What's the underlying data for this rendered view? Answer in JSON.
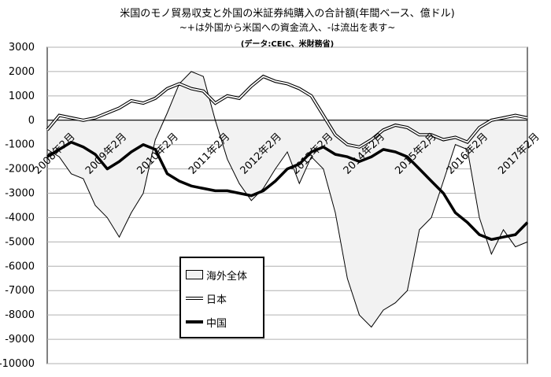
{
  "chart_data": {
    "type": "line",
    "title": "米国のモノ貿易収支と外国の米証券純購入の合計額(年間ベース、億ドル)",
    "subtitle": "~+は外国から米国への資金流入、-は流出を表す~",
    "source": "(データ:CEIC、米財務省)",
    "ylim": [
      -10000,
      3000
    ],
    "y_ticks": [
      3000,
      2000,
      1000,
      0,
      -1000,
      -2000,
      -3000,
      -4000,
      -5000,
      -6000,
      -7000,
      -8000,
      -9000,
      -10000
    ],
    "x_ticks": [
      "2008年2月",
      "2009年2月",
      "2010年2月",
      "2011年2月",
      "2012年2月",
      "2013年2月",
      "2014年2月",
      "2015年2月",
      "2016年2月",
      "2017年2月"
    ],
    "grid": true,
    "legend": "inside-bottom-left",
    "x": [
      0,
      0.25,
      0.5,
      0.75,
      1,
      1.25,
      1.5,
      1.75,
      2,
      2.25,
      2.5,
      2.75,
      3,
      3.25,
      3.5,
      3.75,
      4,
      4.25,
      4.5,
      4.75,
      5,
      5.25,
      5.5,
      5.75,
      6,
      6.25,
      6.5,
      6.75,
      7,
      7.25,
      7.5,
      7.75,
      8,
      8.25,
      8.5,
      8.75,
      9,
      9.25,
      9.5,
      9.75,
      10
    ],
    "series": [
      {
        "name": "海外全体",
        "style": "area",
        "color": "#f2f2f2",
        "values": [
          -1200,
          -1500,
          -2200,
          -2400,
          -3500,
          -4000,
          -4800,
          -3800,
          -3000,
          -800,
          300,
          1500,
          2000,
          1800,
          0,
          -1600,
          -2600,
          -3300,
          -2800,
          -2000,
          -1300,
          -2600,
          -1500,
          -2000,
          -3800,
          -6500,
          -8000,
          -8500,
          -7800,
          -7500,
          -7000,
          -4500,
          -4000,
          -2500,
          -1000,
          -1200,
          -4000,
          -5500,
          -4500,
          -5200,
          -5000
        ]
      },
      {
        "name": "日本",
        "style": "double",
        "color": "#000000",
        "values": [
          -400,
          200,
          100,
          0,
          100,
          300,
          500,
          800,
          700,
          900,
          1300,
          1500,
          1300,
          1200,
          700,
          1000,
          900,
          1400,
          1800,
          1600,
          1500,
          1300,
          1000,
          200,
          -600,
          -1000,
          -1100,
          -800,
          -400,
          -200,
          -300,
          -600,
          -600,
          -800,
          -700,
          -900,
          -300,
          0,
          100,
          200,
          100
        ]
      },
      {
        "name": "中国",
        "style": "thick",
        "color": "#000000",
        "values": [
          -1500,
          -1200,
          -900,
          -1100,
          -1400,
          -2000,
          -1700,
          -1300,
          -1000,
          -1200,
          -2200,
          -2500,
          -2700,
          -2800,
          -2900,
          -2900,
          -3000,
          -3100,
          -2900,
          -2500,
          -2000,
          -1800,
          -1300,
          -1100,
          -1400,
          -1500,
          -1700,
          -1500,
          -1200,
          -1300,
          -1500,
          -2000,
          -2500,
          -3000,
          -3800,
          -4200,
          -4700,
          -4900,
          -4800,
          -4700,
          -4200
        ]
      }
    ]
  }
}
